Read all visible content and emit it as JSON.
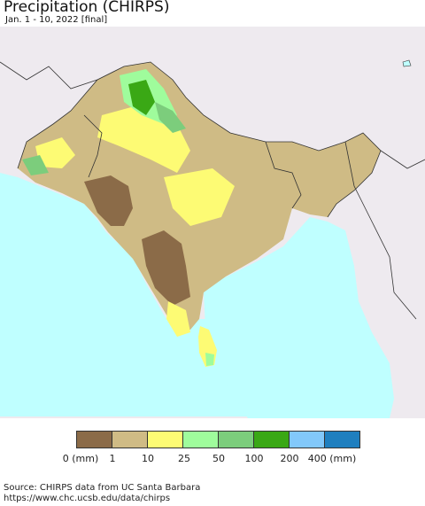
{
  "title": "Precipitation (CHIRPS)",
  "subtitle": "Jan. 1 - 10, 2022 [final]",
  "legend": {
    "colors": [
      "#8b6b48",
      "#cfbb85",
      "#fdfb74",
      "#9ffc9c",
      "#7ccd7c",
      "#3aa815",
      "#82c8fa",
      "#1f7fbf"
    ],
    "labels": [
      "0 (mm)",
      "1",
      "10",
      "25",
      "50",
      "100",
      "200",
      "400 (mm)"
    ]
  },
  "source": {
    "line1": "Source: CHIRPS data from UC Santa Barbara",
    "line2": "https://www.chc.ucsb.edu/data/chirps"
  },
  "map_colors": {
    "ocean": "#bfffff",
    "outside": "#eeeaef",
    "border": "#333333"
  }
}
